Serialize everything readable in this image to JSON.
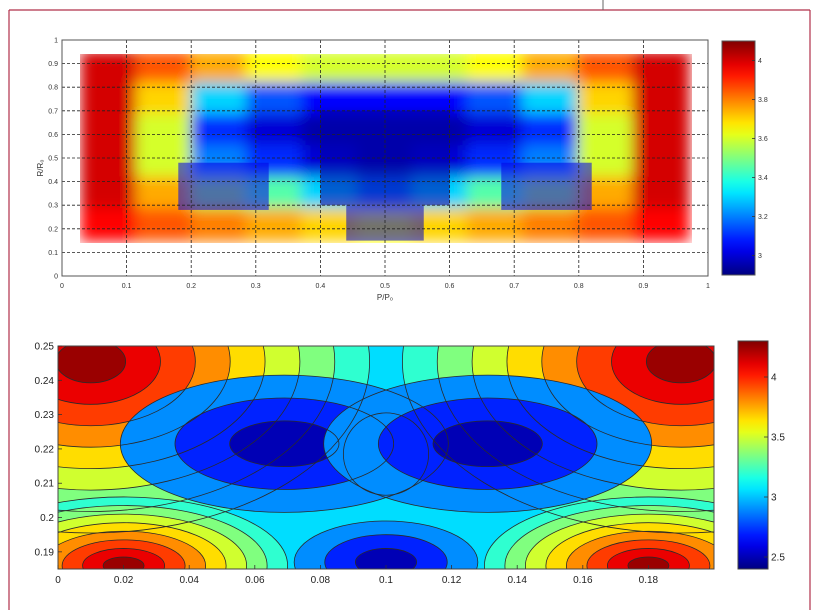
{
  "chart_data": [
    {
      "type": "heatmap",
      "xlabel": "P/P₀",
      "ylabel": "R/R₀",
      "xlim": [
        0,
        1
      ],
      "ylim": [
        0,
        1
      ],
      "x_ticks": [
        "0",
        "0.1",
        "0.2",
        "0.3",
        "0.4",
        "0.5",
        "0.6",
        "0.7",
        "0.8",
        "0.9",
        "1"
      ],
      "y_ticks": [
        "0",
        "0.1",
        "0.2",
        "0.3",
        "0.4",
        "0.5",
        "0.6",
        "0.7",
        "0.8",
        "0.9",
        "1"
      ],
      "colorbar": {
        "ticks": [
          "3",
          "3.2",
          "3.4",
          "3.6",
          "3.8",
          "4"
        ],
        "range": [
          2.9,
          4.1
        ]
      },
      "grid": true,
      "data_extent": {
        "x": [
          0.03,
          0.97
        ],
        "y": [
          0.15,
          0.95
        ]
      },
      "field_levels": [
        [
          4.0,
          3.85,
          3.75,
          3.65,
          3.6,
          3.6,
          3.6,
          3.65,
          3.75,
          3.85,
          4.0
        ],
        [
          4.0,
          3.7,
          3.3,
          3.15,
          3.05,
          3.05,
          3.05,
          3.15,
          3.3,
          3.7,
          4.0
        ],
        [
          4.0,
          3.6,
          3.1,
          3.0,
          2.95,
          2.95,
          2.95,
          3.0,
          3.1,
          3.6,
          4.0
        ],
        [
          4.0,
          3.6,
          3.2,
          3.1,
          3.0,
          2.95,
          3.0,
          3.1,
          3.2,
          3.6,
          4.0
        ],
        [
          4.0,
          3.75,
          3.55,
          3.45,
          3.3,
          3.2,
          3.3,
          3.45,
          3.55,
          3.75,
          4.0
        ],
        [
          3.95,
          3.85,
          3.8,
          3.75,
          3.7,
          3.65,
          3.7,
          3.75,
          3.8,
          3.85,
          3.95
        ]
      ]
    },
    {
      "type": "heatmap",
      "xlim": [
        0,
        0.2
      ],
      "ylim": [
        0.185,
        0.25
      ],
      "x_ticks": [
        "0",
        "0.02",
        "0.04",
        "0.06",
        "0.08",
        "0.1",
        "0.12",
        "0.14",
        "0.16",
        "0.18"
      ],
      "y_ticks": [
        "0.19",
        "0.2",
        "0.21",
        "0.22",
        "0.23",
        "0.24",
        "0.25"
      ],
      "colorbar": {
        "ticks": [
          "2.5",
          "3",
          "3.5",
          "4"
        ],
        "range": [
          2.4,
          4.3
        ]
      },
      "contour_levels": [
        2.5,
        2.7,
        2.9,
        3.05,
        3.2,
        3.35,
        3.5,
        3.65,
        3.8,
        3.95,
        4.1,
        4.25
      ],
      "minima": [
        {
          "x": 0.069,
          "y": 0.2215,
          "value": 2.5
        },
        {
          "x": 0.131,
          "y": 0.2215,
          "value": 2.5
        },
        {
          "x": 0.1,
          "y": 0.187,
          "value": 2.5
        }
      ],
      "maxima": [
        {
          "x": 0.01,
          "y": 0.2455,
          "value": 4.3
        },
        {
          "x": 0.19,
          "y": 0.2455,
          "value": 4.3
        }
      ]
    }
  ]
}
